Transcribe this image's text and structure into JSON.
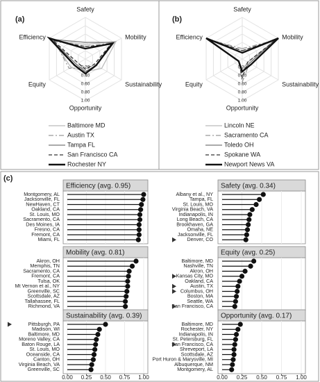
{
  "chart_data": [
    {
      "type": "radar",
      "label": "(a)",
      "axes": [
        "Safety",
        "Mobility",
        "Sustainability",
        "Opportunity",
        "Equity",
        "Efficiency"
      ],
      "rlim": [
        0,
        1
      ],
      "rticks": [
        {
          "value": 0.2,
          "label": "0.20"
        },
        {
          "value": 0.4,
          "label": "0.40"
        },
        {
          "value": 0.6,
          "label": "0.60"
        },
        {
          "value": 0.8,
          "label": "0.80"
        },
        {
          "value": 1,
          "label": "1.00"
        }
      ],
      "series": [
        {
          "name": "Baltimore MD",
          "color": "#bbbbbb",
          "style": "solid",
          "weight": "thin",
          "values": [
            0.35,
            0.85,
            0.45,
            0.3,
            0.4,
            0.9
          ]
        },
        {
          "name": "Austin TX",
          "color": "#999999",
          "style": "dashdot",
          "weight": "thin",
          "values": [
            0.3,
            0.8,
            0.3,
            0.2,
            0.45,
            0.85
          ]
        },
        {
          "name": "Tampa FL",
          "color": "#777777",
          "style": "solid",
          "weight": "thin",
          "values": [
            0.4,
            0.8,
            0.3,
            0.3,
            0.25,
            0.95
          ]
        },
        {
          "name": "San Francisco CA",
          "color": "#333333",
          "style": "dashed",
          "weight": "thin",
          "values": [
            0.3,
            0.7,
            0.25,
            0.25,
            0.2,
            0.9
          ]
        },
        {
          "name": "Rochester NY",
          "color": "#111111",
          "style": "solid",
          "weight": "bold",
          "values": [
            0.25,
            0.75,
            0.3,
            0.35,
            0.3,
            1
          ]
        }
      ]
    },
    {
      "type": "radar",
      "label": "(b)",
      "axes": [
        "Safety",
        "Mobility",
        "Sustainability",
        "Opportunity",
        "Equity",
        "Efficiency"
      ],
      "rlim": [
        0,
        1
      ],
      "rticks": [
        {
          "value": 0.2,
          "label": "0.20"
        },
        {
          "value": 0.4,
          "label": "0.40"
        },
        {
          "value": 0.6,
          "label": "0.60"
        },
        {
          "value": 0.8,
          "label": "0.80"
        },
        {
          "value": 1,
          "label": "1.00"
        }
      ],
      "series": [
        {
          "name": "Lincoln NE",
          "color": "#bbbbbb",
          "style": "solid",
          "weight": "thin",
          "values": [
            0.2,
            0.95,
            0.15,
            0.25,
            0.1,
            1
          ]
        },
        {
          "name": "Sacramento CA",
          "color": "#999999",
          "style": "dashdot",
          "weight": "thin",
          "values": [
            0.25,
            0.9,
            0.2,
            0.55,
            0.1,
            0.95
          ]
        },
        {
          "name": "Toledo OH",
          "color": "#777777",
          "style": "solid",
          "weight": "thin",
          "values": [
            0.15,
            0.9,
            0.2,
            0.3,
            0.1,
            0.95
          ]
        },
        {
          "name": "Spokane WA",
          "color": "#333333",
          "style": "dashed",
          "weight": "thin",
          "values": [
            0.2,
            0.95,
            0.15,
            0.45,
            0.1,
            1
          ]
        },
        {
          "name": "Newport News VA",
          "color": "#111111",
          "style": "solid",
          "weight": "bold",
          "values": [
            0.15,
            1,
            0.25,
            0.3,
            0.1,
            1
          ]
        }
      ]
    },
    {
      "type": "lollipop",
      "label": "(c)",
      "color": "#111111",
      "grid": true,
      "xlim": [
        0,
        1
      ],
      "xticks": [
        {
          "value": 0,
          "label": "0.00"
        },
        {
          "value": 0.25,
          "label": "0.25"
        },
        {
          "value": 0.5,
          "label": "0.50"
        },
        {
          "value": 0.75,
          "label": "0.75"
        },
        {
          "value": 1,
          "label": "1.00"
        }
      ],
      "panels": [
        {
          "title": "Efficiency (avg. 0.95)",
          "categories": [
            "Montgomery, AL",
            "Jacksonville, FL",
            "NewHaven, CT",
            "Oakland, CA",
            "St. Louis, MO",
            "Sacramento, CA",
            "Des Moines, IA",
            "Fresno, CA",
            "Fremont, CA",
            "Miami, FL"
          ],
          "values": [
            1,
            0.99,
            0.97,
            0.96,
            0.95,
            0.95,
            0.94,
            0.94,
            0.94,
            0.93
          ],
          "highlighted": [
            false,
            false,
            false,
            false,
            false,
            false,
            false,
            false,
            false,
            false
          ]
        },
        {
          "title": "Safety (avg. 0.34)",
          "categories": [
            "Albany et al., NY",
            "Tampa, FL",
            "St. Louis, MO",
            "Virginia Beach, VA",
            "Indianapolis, IN",
            "Long Beach, CA",
            "Brookhaven, GA",
            "Omaha, NE",
            "Jacksonville, FL",
            "Denver, CO"
          ],
          "values": [
            0.52,
            0.47,
            0.43,
            0.38,
            0.35,
            0.34,
            0.33,
            0.32,
            0.31,
            0.3
          ],
          "highlighted": [
            false,
            false,
            false,
            false,
            false,
            false,
            false,
            false,
            false,
            true
          ]
        },
        {
          "title": "Mobility (avg. 0.81)",
          "categories": [
            "Akron, OH",
            "Memphis, TN",
            "Sacramento, CA",
            "Fremont, CA",
            "Tulsa, OK",
            "Mt Vernon et al., NY",
            "Greenville, SC",
            "Scottsdale, AZ",
            "Tallahassee, FL",
            "Richmond, VA"
          ],
          "values": [
            0.9,
            0.85,
            0.81,
            0.8,
            0.79,
            0.79,
            0.78,
            0.77,
            0.76,
            0.76
          ],
          "highlighted": [
            false,
            false,
            false,
            false,
            false,
            false,
            false,
            false,
            false,
            false
          ]
        },
        {
          "title": "Equity (avg. 0.25)",
          "categories": [
            "Baltimore, MD",
            "Nashville, TN",
            "Akron, OH",
            "Kansas City, MO",
            "Oakland, CA",
            "Austin, TX",
            "Columbus, OH",
            "Boston, MA",
            "Seattle, WA",
            "San Francisco, CA"
          ],
          "values": [
            0.4,
            0.36,
            0.29,
            0.25,
            0.22,
            0.2,
            0.19,
            0.18,
            0.17,
            0.16
          ],
          "highlighted": [
            false,
            false,
            false,
            true,
            false,
            true,
            true,
            false,
            false,
            true
          ]
        },
        {
          "title": "Sustainability (avg. 0.39)",
          "categories": [
            "Pittsburgh, PA",
            "Madison, WI",
            "Baltimore, MD",
            "Moreno Valley, CA",
            "Baton Rouge, LA",
            "St. Louis, MO",
            "Oceanside, CA",
            "Canton, OH",
            "Virginia Beach, VA",
            "Greenville, SC"
          ],
          "values": [
            0.5,
            0.42,
            0.4,
            0.38,
            0.37,
            0.36,
            0.35,
            0.34,
            0.32,
            0.31
          ],
          "highlighted": [
            true,
            false,
            false,
            false,
            false,
            false,
            false,
            false,
            false,
            false
          ]
        },
        {
          "title": "Opportunity (avg. 0.17)",
          "categories": [
            "Baltimore, MD",
            "Rochester, NY",
            "Indianapolis, IN",
            "St. Petersburg, FL",
            "San Francisco, CA",
            "Shreveport, LA",
            "Scottsdale, AZ",
            "Port Huron & Marysville, MI",
            "Albuquerque, NM",
            "Montgomery, AL"
          ],
          "values": [
            0.23,
            0.2,
            0.18,
            0.17,
            0.16,
            0.15,
            0.15,
            0.14,
            0.13,
            0.12
          ],
          "highlighted": [
            false,
            false,
            false,
            false,
            true,
            false,
            false,
            false,
            false,
            false
          ]
        }
      ]
    }
  ]
}
